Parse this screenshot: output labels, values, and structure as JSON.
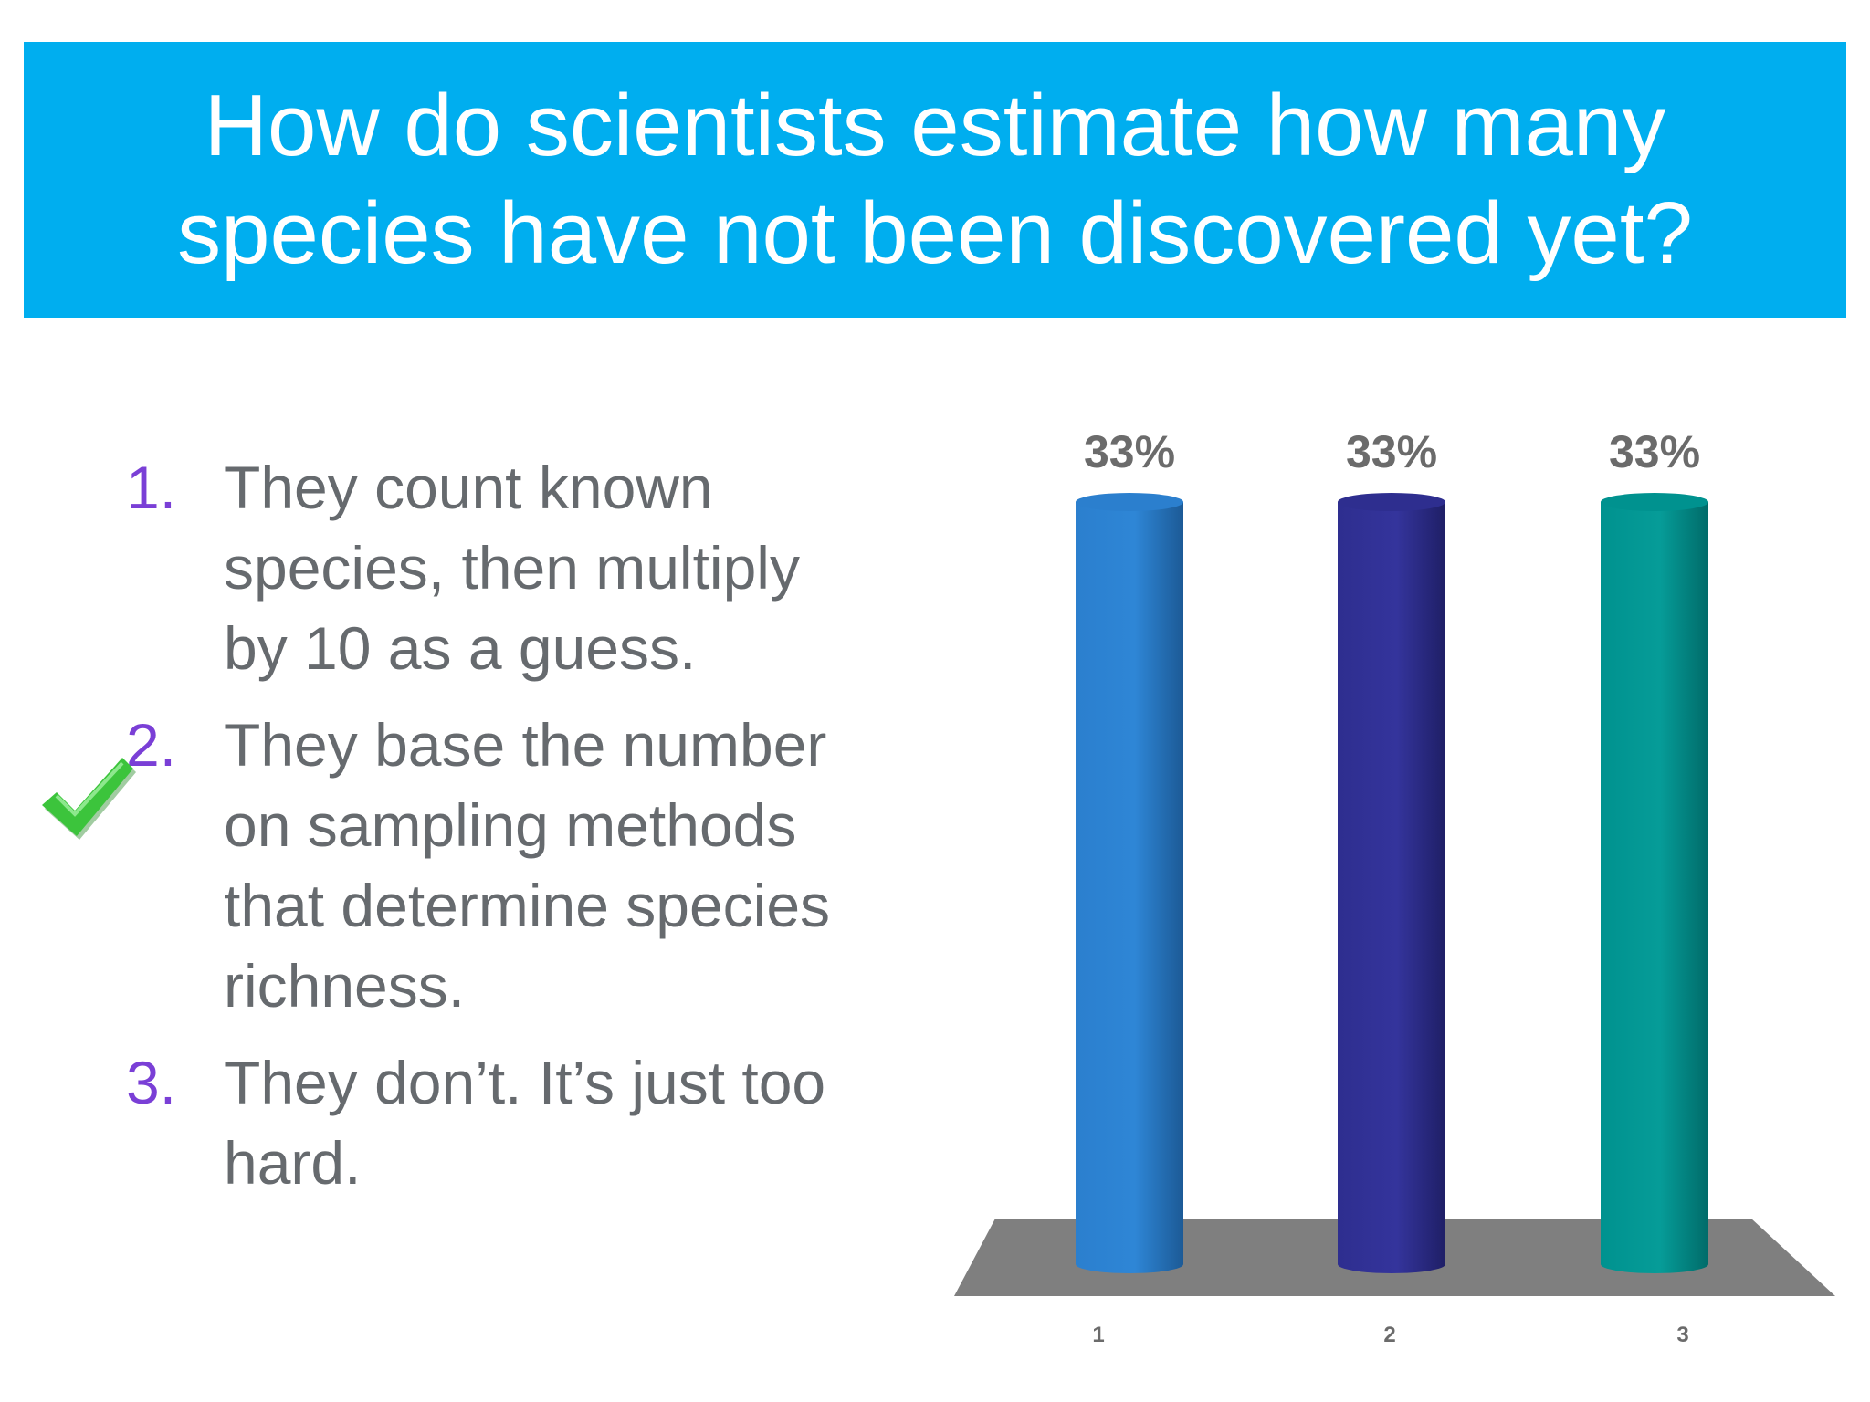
{
  "slide": {
    "title_lines": [
      "How do scientists estimate how many",
      "species have not been discovered yet?"
    ],
    "answers": [
      {
        "number": "1.",
        "lines": [
          "They count known",
          "species, then multiply",
          "by 10 as a guess."
        ]
      },
      {
        "number": "2.",
        "lines": [
          "They base the number",
          "on sampling methods",
          "that determine species",
          "richness."
        ]
      },
      {
        "number": "3.",
        "lines": [
          "They don’t. It’s just too",
          "hard."
        ]
      }
    ],
    "correct_answer_icon": "checkmark-icon",
    "colors": {
      "banner": "#00AEEF",
      "answer_number": "#7A3FD6",
      "check": "#3CC43C"
    }
  },
  "chart_data": {
    "type": "bar",
    "categories": [
      "1",
      "2",
      "3"
    ],
    "values": [
      33,
      33,
      33
    ],
    "data_labels": [
      "33%",
      "33%",
      "33%"
    ],
    "ylim": [
      0,
      33
    ],
    "grid": false,
    "colors": [
      "#2B7FCE",
      "#2E2E8F",
      "#00928F"
    ]
  }
}
